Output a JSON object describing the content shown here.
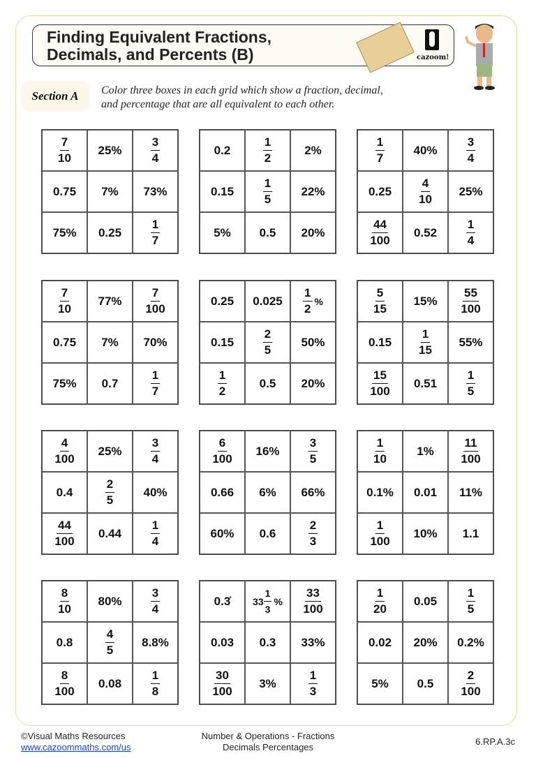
{
  "header": {
    "title_line1": "Finding Equivalent Fractions,",
    "title_line2": "Decimals, and Percents (B)",
    "logo_text": "cazoom!"
  },
  "section": {
    "label": "Section A",
    "instruction_line1": "Color three boxes in each grid which show a fraction, decimal,",
    "instruction_line2": "and percentage that are all equivalent to each other."
  },
  "grids": [
    [
      {
        "n": "7",
        "d": "10"
      },
      "25%",
      {
        "n": "3",
        "d": "4"
      },
      "0.75",
      "7%",
      "73%",
      "75%",
      "0.25",
      {
        "n": "1",
        "d": "7"
      }
    ],
    [
      "0.2",
      {
        "n": "1",
        "d": "2"
      },
      "2%",
      "0.15",
      {
        "n": "1",
        "d": "5"
      },
      "22%",
      "5%",
      "0.5",
      "20%"
    ],
    [
      {
        "n": "1",
        "d": "7"
      },
      "40%",
      {
        "n": "3",
        "d": "4"
      },
      "0.25",
      {
        "n": "4",
        "d": "10"
      },
      "25%",
      {
        "n": "44",
        "d": "100"
      },
      "0.52",
      {
        "n": "1",
        "d": "4"
      }
    ],
    [
      {
        "n": "7",
        "d": "10"
      },
      "77%",
      {
        "n": "7",
        "d": "100"
      },
      "0.75",
      "7%",
      "70%",
      "75%",
      "0.7",
      {
        "n": "1",
        "d": "7"
      }
    ],
    [
      "0.25",
      "0.025",
      {
        "n": "1",
        "d": "2",
        "post": "%"
      },
      "0.15",
      {
        "n": "2",
        "d": "5"
      },
      "50%",
      {
        "n": "1",
        "d": "2"
      },
      "0.5",
      "20%"
    ],
    [
      {
        "n": "5",
        "d": "15"
      },
      "15%",
      {
        "n": "55",
        "d": "100"
      },
      "0.15",
      {
        "n": "1",
        "d": "15"
      },
      "55%",
      {
        "n": "15",
        "d": "100"
      },
      "0.51",
      {
        "n": "1",
        "d": "5"
      }
    ],
    [
      {
        "n": "4",
        "d": "100"
      },
      "25%",
      {
        "n": "3",
        "d": "4"
      },
      "0.4",
      {
        "n": "2",
        "d": "5"
      },
      "40%",
      {
        "n": "44",
        "d": "100"
      },
      "0.44",
      {
        "n": "1",
        "d": "4"
      }
    ],
    [
      {
        "n": "6",
        "d": "100"
      },
      "16%",
      {
        "n": "3",
        "d": "5"
      },
      "0.66",
      "6%",
      "66%",
      "60%",
      "0.6",
      {
        "n": "2",
        "d": "3"
      }
    ],
    [
      {
        "n": "1",
        "d": "10"
      },
      "1%",
      {
        "n": "11",
        "d": "100"
      },
      "0.1%",
      "0.01",
      "11%",
      {
        "n": "1",
        "d": "100"
      },
      "10%",
      "1.1"
    ],
    [
      {
        "n": "8",
        "d": "10"
      },
      "80%",
      {
        "n": "3",
        "d": "4"
      },
      "0.8",
      {
        "n": "4",
        "d": "5"
      },
      "8.8%",
      {
        "n": "8",
        "d": "100"
      },
      "0.08",
      {
        "n": "1",
        "d": "8"
      }
    ],
    [
      "0.3̇",
      {
        "pre": "33",
        "n": "1",
        "d": "3",
        "post": "%"
      },
      {
        "n": "33",
        "d": "100"
      },
      "0.03",
      "0.3",
      "33%",
      {
        "n": "30",
        "d": "100"
      },
      "3%",
      {
        "n": "1",
        "d": "3"
      }
    ],
    [
      {
        "n": "1",
        "d": "20"
      },
      "0.05",
      {
        "n": "1",
        "d": "5"
      },
      "0.02",
      "20%",
      "0.2%",
      "5%",
      "0.5",
      {
        "n": "2",
        "d": "100"
      }
    ]
  ],
  "footer": {
    "copyright": "©Visual Maths Resources",
    "url": "www.cazoommaths.com/us",
    "topic_line1": "Number & Operations - Fractions",
    "topic_line2": "Decimals Percentages",
    "standard": "6.RP.A.3c"
  }
}
